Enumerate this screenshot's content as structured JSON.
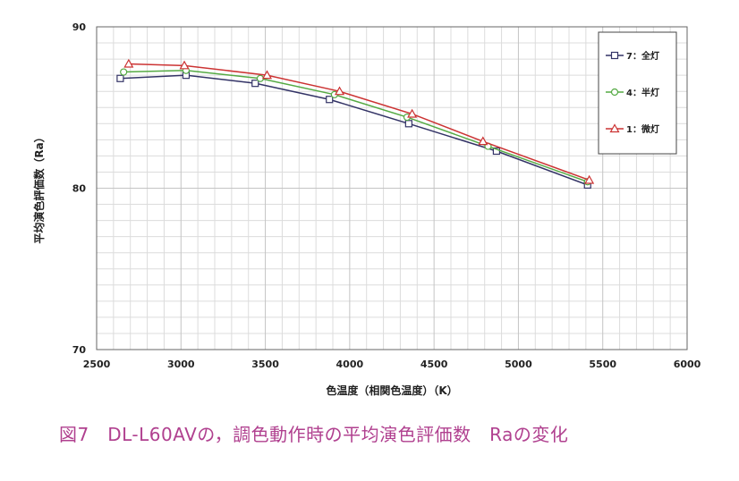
{
  "chart_data": {
    "type": "line",
    "xlabel": "色温度（相関色温度）（K）",
    "ylabel": "平均演色評価数（Ra）",
    "xlim": [
      2500,
      6000
    ],
    "ylim": [
      70,
      90
    ],
    "xticks": [
      2500,
      3000,
      3500,
      4000,
      4500,
      5000,
      5500,
      6000
    ],
    "yticks": [
      70,
      80,
      90
    ],
    "grid": true,
    "legend_position": "top-right",
    "series": [
      {
        "name": "7：全灯",
        "color": "#333366",
        "marker": "square",
        "x": [
          2640,
          3030,
          3440,
          3880,
          4350,
          4870,
          5410
        ],
        "y": [
          86.8,
          87.0,
          86.5,
          85.5,
          84.0,
          82.3,
          80.2
        ]
      },
      {
        "name": "4：半灯",
        "color": "#55aa44",
        "marker": "circle",
        "x": [
          2660,
          3030,
          3470,
          3910,
          4340,
          4820,
          5410
        ],
        "y": [
          87.2,
          87.3,
          86.8,
          85.8,
          84.4,
          82.6,
          80.4
        ]
      },
      {
        "name": "1：微灯",
        "color": "#cc3333",
        "marker": "triangle",
        "x": [
          2690,
          3020,
          3510,
          3940,
          4370,
          4790,
          5420
        ],
        "y": [
          87.7,
          87.6,
          87.0,
          86.0,
          84.6,
          82.9,
          80.5
        ]
      }
    ]
  },
  "caption": "図7　DL-L60AVの，調色動作時の平均演色評価数　Raの変化"
}
